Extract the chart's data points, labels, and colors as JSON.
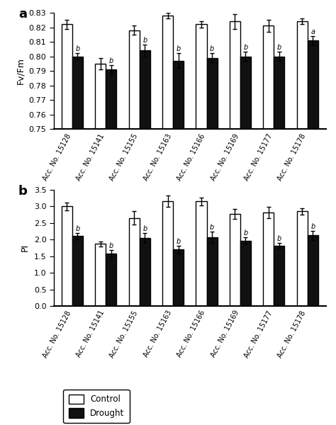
{
  "accessions": [
    "Acc. No. 15128",
    "Acc. No. 15141",
    "Acc. No. 15155",
    "Acc. No. 15163",
    "Acc. No. 15166",
    "Acc. No. 15169",
    "Acc. No. 15177",
    "Acc. No. 15178"
  ],
  "fvfm_control": [
    0.822,
    0.795,
    0.818,
    0.828,
    0.822,
    0.824,
    0.821,
    0.824
  ],
  "fvfm_drought": [
    0.8,
    0.791,
    0.804,
    0.797,
    0.799,
    0.8,
    0.8,
    0.811
  ],
  "fvfm_control_err": [
    0.003,
    0.004,
    0.003,
    0.002,
    0.002,
    0.005,
    0.004,
    0.002
  ],
  "fvfm_drought_err": [
    0.002,
    0.003,
    0.004,
    0.005,
    0.003,
    0.003,
    0.003,
    0.003
  ],
  "fvfm_ylim": [
    0.75,
    0.83
  ],
  "fvfm_yticks": [
    0.75,
    0.76,
    0.77,
    0.78,
    0.79,
    0.8,
    0.81,
    0.82,
    0.83
  ],
  "fvfm_ylabel": "Fv/Fm",
  "fvfm_drought_labels": [
    "b",
    "b",
    "b",
    "b",
    "b",
    "b",
    "b",
    "a"
  ],
  "pi_control": [
    3.0,
    1.87,
    2.65,
    3.15,
    3.15,
    2.77,
    2.82,
    2.85
  ],
  "pi_drought": [
    2.1,
    1.57,
    2.05,
    1.7,
    2.07,
    1.97,
    1.82,
    2.12
  ],
  "pi_control_err": [
    0.12,
    0.07,
    0.2,
    0.17,
    0.12,
    0.15,
    0.17,
    0.1
  ],
  "pi_drought_err": [
    0.1,
    0.12,
    0.15,
    0.12,
    0.17,
    0.1,
    0.08,
    0.13
  ],
  "pi_ylim": [
    0.0,
    3.5
  ],
  "pi_yticks": [
    0.0,
    0.5,
    1.0,
    1.5,
    2.0,
    2.5,
    3.0,
    3.5
  ],
  "pi_ylabel": "PI",
  "pi_drought_labels": [
    "b",
    "b",
    "b",
    "b",
    "b",
    "b",
    "b",
    "b"
  ],
  "bar_width": 0.32,
  "control_color": "#ffffff",
  "drought_color": "#111111",
  "edge_color": "#000000",
  "panel_a_label": "a",
  "panel_b_label": "b",
  "legend_control": "Control",
  "legend_drought": "Drought",
  "figsize": [
    4.74,
    6.0
  ],
  "dpi": 100,
  "label_rotation": 62
}
